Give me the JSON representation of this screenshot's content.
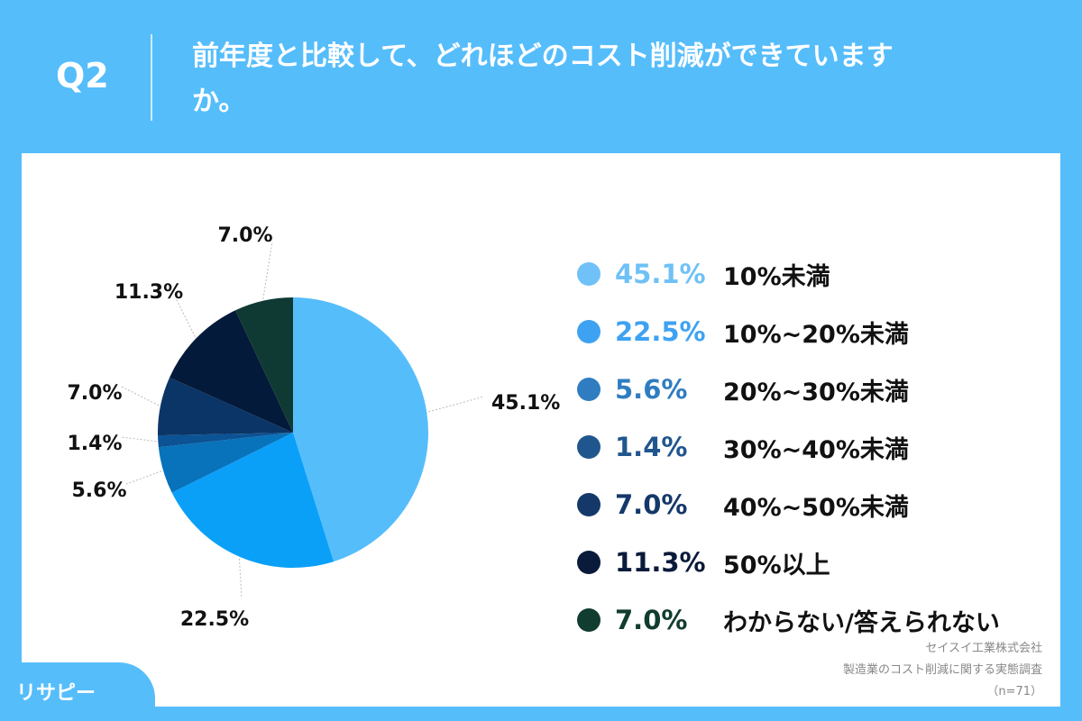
{
  "header": {
    "question_number": "Q2",
    "title": "前年度と比較して、どれほどのコスト削減ができていますか。"
  },
  "chart_data": {
    "type": "pie",
    "start": "top",
    "direction": "clockwise",
    "legend_position": "right",
    "slices": [
      {
        "label": "10%未満",
        "value": 45.1,
        "display": "45.1%",
        "color": "#56bdfb",
        "legend_color": "#6fc1f7"
      },
      {
        "label": "10%~20%未満",
        "value": 22.5,
        "display": "22.5%",
        "color": "#0aa0f8",
        "legend_color": "#3ea2f2"
      },
      {
        "label": "20%~30%未満",
        "value": 5.6,
        "display": "5.6%",
        "color": "#0872bb",
        "legend_color": "#2f7dc0"
      },
      {
        "label": "30%~40%未満",
        "value": 1.4,
        "display": "1.4%",
        "color": "#0b5394",
        "legend_color": "#20568e"
      },
      {
        "label": "40%~50%未満",
        "value": 7.0,
        "display": "7.0%",
        "color": "#0b3566",
        "legend_color": "#15386a"
      },
      {
        "label": "50%以上",
        "value": 11.3,
        "display": "11.3%",
        "color": "#041a3a",
        "legend_color": "#0a1a3a"
      },
      {
        "label": "わからない/答えられない",
        "value": 7.0,
        "display": "7.0%",
        "color": "#0f3a33",
        "legend_color": "#113c30"
      }
    ]
  },
  "source": {
    "company": "セイスイ工業株式会社",
    "survey": "製造業のコスト削減に関する実態調査",
    "sample": "（n=71）"
  },
  "logo": {
    "text": "リサピー"
  }
}
